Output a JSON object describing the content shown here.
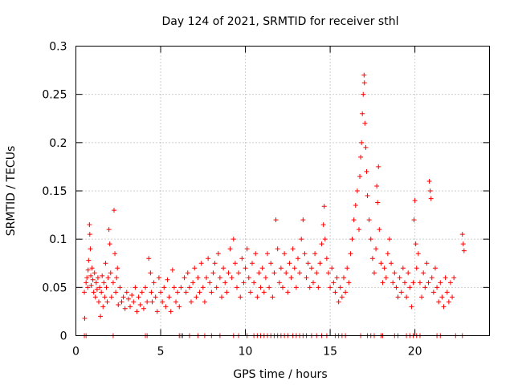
{
  "chart_data": {
    "type": "scatter",
    "title": "Day 124 of 2021, SRMTID for receiver sthl",
    "xlabel": "GPS time / hours",
    "ylabel": "SRMTID / TECUs",
    "xlim": [
      0,
      24.4
    ],
    "ylim": [
      0,
      0.3
    ],
    "xticks": [
      0,
      5,
      10,
      15,
      20
    ],
    "xtick_labels": [
      "0",
      "5",
      "10",
      "15",
      "20"
    ],
    "yticks": [
      0,
      0.05,
      0.1,
      0.15,
      0.2,
      0.25,
      0.3
    ],
    "ytick_labels": [
      "0",
      "0.05",
      "0.1",
      "0.15",
      "0.2",
      "0.25",
      "0.3"
    ],
    "grid": true,
    "marker": "plus",
    "series": [
      {
        "name": "SRMTID",
        "color": "#ff0000",
        "points": [
          [
            0.5,
            0.045
          ],
          [
            0.52,
            0.018
          ],
          [
            0.6,
            0.055
          ],
          [
            0.65,
            0.06
          ],
          [
            0.7,
            0.05
          ],
          [
            0.72,
            0.068
          ],
          [
            0.75,
            0.078
          ],
          [
            0.8,
            0.115
          ],
          [
            0.82,
            0.105
          ],
          [
            0.85,
            0.09
          ],
          [
            0.88,
            0.062
          ],
          [
            0.9,
            0.052
          ],
          [
            0.95,
            0.07
          ],
          [
            1.0,
            0.058
          ],
          [
            1.05,
            0.045
          ],
          [
            1.1,
            0.065
          ],
          [
            1.15,
            0.04
          ],
          [
            1.2,
            0.055
          ],
          [
            1.25,
            0.048
          ],
          [
            1.3,
            0.06
          ],
          [
            1.35,
            0.035
          ],
          [
            1.4,
            0.05
          ],
          [
            1.45,
            0.02
          ],
          [
            1.5,
            0.045
          ],
          [
            1.55,
            0.062
          ],
          [
            1.6,
            0.03
          ],
          [
            1.65,
            0.055
          ],
          [
            1.7,
            0.04
          ],
          [
            1.75,
            0.075
          ],
          [
            1.8,
            0.05
          ],
          [
            1.85,
            0.035
          ],
          [
            1.9,
            0.06
          ],
          [
            1.95,
            0.11
          ],
          [
            2.0,
            0.095
          ],
          [
            2.05,
            0.065
          ],
          [
            2.1,
            0.04
          ],
          [
            2.2,
            0.055
          ],
          [
            2.25,
            0.13
          ],
          [
            2.3,
            0.085
          ],
          [
            2.35,
            0.045
          ],
          [
            2.4,
            0.06
          ],
          [
            2.45,
            0.07
          ],
          [
            2.5,
            0.032
          ],
          [
            2.6,
            0.05
          ],
          [
            2.7,
            0.035
          ],
          [
            2.8,
            0.04
          ],
          [
            2.9,
            0.028
          ],
          [
            3.0,
            0.045
          ],
          [
            3.1,
            0.038
          ],
          [
            3.2,
            0.03
          ],
          [
            3.3,
            0.042
          ],
          [
            3.4,
            0.035
          ],
          [
            3.5,
            0.05
          ],
          [
            3.6,
            0.025
          ],
          [
            3.7,
            0.04
          ],
          [
            3.8,
            0.032
          ],
          [
            3.9,
            0.045
          ],
          [
            4.0,
            0.028
          ],
          [
            4.1,
            0.05
          ],
          [
            4.2,
            0.035
          ],
          [
            4.3,
            0.08
          ],
          [
            4.4,
            0.065
          ],
          [
            4.45,
            0.045
          ],
          [
            4.5,
            0.035
          ],
          [
            4.6,
            0.055
          ],
          [
            4.7,
            0.04
          ],
          [
            4.8,
            0.025
          ],
          [
            4.9,
            0.06
          ],
          [
            5.0,
            0.045
          ],
          [
            5.1,
            0.035
          ],
          [
            5.2,
            0.05
          ],
          [
            5.3,
            0.03
          ],
          [
            5.4,
            0.058
          ],
          [
            5.5,
            0.04
          ],
          [
            5.6,
            0.025
          ],
          [
            5.7,
            0.068
          ],
          [
            5.8,
            0.05
          ],
          [
            5.9,
            0.035
          ],
          [
            6.0,
            0.045
          ],
          [
            6.1,
            0.03
          ],
          [
            6.2,
            0.05
          ],
          [
            6.4,
            0.06
          ],
          [
            6.5,
            0.045
          ],
          [
            6.6,
            0.065
          ],
          [
            6.7,
            0.05
          ],
          [
            6.8,
            0.035
          ],
          [
            6.9,
            0.055
          ],
          [
            7.0,
            0.07
          ],
          [
            7.1,
            0.04
          ],
          [
            7.2,
            0.06
          ],
          [
            7.3,
            0.045
          ],
          [
            7.4,
            0.075
          ],
          [
            7.5,
            0.05
          ],
          [
            7.6,
            0.035
          ],
          [
            7.7,
            0.06
          ],
          [
            7.8,
            0.08
          ],
          [
            7.9,
            0.055
          ],
          [
            8.0,
            0.045
          ],
          [
            8.1,
            0.065
          ],
          [
            8.2,
            0.075
          ],
          [
            8.3,
            0.05
          ],
          [
            8.4,
            0.085
          ],
          [
            8.5,
            0.06
          ],
          [
            8.6,
            0.04
          ],
          [
            8.7,
            0.07
          ],
          [
            8.8,
            0.055
          ],
          [
            8.9,
            0.045
          ],
          [
            9.0,
            0.065
          ],
          [
            9.1,
            0.09
          ],
          [
            9.2,
            0.06
          ],
          [
            9.3,
            0.1
          ],
          [
            9.4,
            0.075
          ],
          [
            9.5,
            0.05
          ],
          [
            9.6,
            0.065
          ],
          [
            9.7,
            0.04
          ],
          [
            9.8,
            0.08
          ],
          [
            9.9,
            0.055
          ],
          [
            10.0,
            0.07
          ],
          [
            10.1,
            0.09
          ],
          [
            10.2,
            0.06
          ],
          [
            10.3,
            0.045
          ],
          [
            10.4,
            0.075
          ],
          [
            10.5,
            0.055
          ],
          [
            10.6,
            0.085
          ],
          [
            10.7,
            0.04
          ],
          [
            10.8,
            0.065
          ],
          [
            10.9,
            0.05
          ],
          [
            11.0,
            0.07
          ],
          [
            11.1,
            0.045
          ],
          [
            11.2,
            0.06
          ],
          [
            11.3,
            0.085
          ],
          [
            11.4,
            0.05
          ],
          [
            11.5,
            0.075
          ],
          [
            11.6,
            0.04
          ],
          [
            11.7,
            0.065
          ],
          [
            11.8,
            0.12
          ],
          [
            11.9,
            0.09
          ],
          [
            12.0,
            0.055
          ],
          [
            12.1,
            0.07
          ],
          [
            12.2,
            0.05
          ],
          [
            12.3,
            0.085
          ],
          [
            12.4,
            0.065
          ],
          [
            12.5,
            0.045
          ],
          [
            12.6,
            0.075
          ],
          [
            12.7,
            0.06
          ],
          [
            12.8,
            0.09
          ],
          [
            12.9,
            0.07
          ],
          [
            13.0,
            0.05
          ],
          [
            13.1,
            0.08
          ],
          [
            13.2,
            0.065
          ],
          [
            13.3,
            0.1
          ],
          [
            13.4,
            0.12
          ],
          [
            13.5,
            0.085
          ],
          [
            13.6,
            0.06
          ],
          [
            13.7,
            0.075
          ],
          [
            13.8,
            0.05
          ],
          [
            13.9,
            0.07
          ],
          [
            14.0,
            0.055
          ],
          [
            14.1,
            0.085
          ],
          [
            14.2,
            0.065
          ],
          [
            14.3,
            0.05
          ],
          [
            14.4,
            0.075
          ],
          [
            14.5,
            0.095
          ],
          [
            14.6,
            0.115
          ],
          [
            14.65,
            0.134
          ],
          [
            14.7,
            0.1
          ],
          [
            14.8,
            0.08
          ],
          [
            14.9,
            0.065
          ],
          [
            15.0,
            0.05
          ],
          [
            15.1,
            0.07
          ],
          [
            15.2,
            0.055
          ],
          [
            15.3,
            0.045
          ],
          [
            15.4,
            0.06
          ],
          [
            15.5,
            0.035
          ],
          [
            15.6,
            0.05
          ],
          [
            15.7,
            0.04
          ],
          [
            15.8,
            0.06
          ],
          [
            15.9,
            0.045
          ],
          [
            16.0,
            0.07
          ],
          [
            16.1,
            0.055
          ],
          [
            16.2,
            0.085
          ],
          [
            16.3,
            0.1
          ],
          [
            16.4,
            0.12
          ],
          [
            16.5,
            0.135
          ],
          [
            16.6,
            0.15
          ],
          [
            16.7,
            0.11
          ],
          [
            16.75,
            0.165
          ],
          [
            16.8,
            0.185
          ],
          [
            16.85,
            0.2
          ],
          [
            16.9,
            0.23
          ],
          [
            16.95,
            0.25
          ],
          [
            17.0,
            0.27
          ],
          [
            17.02,
            0.262
          ],
          [
            17.05,
            0.22
          ],
          [
            17.1,
            0.195
          ],
          [
            17.15,
            0.17
          ],
          [
            17.2,
            0.145
          ],
          [
            17.3,
            0.12
          ],
          [
            17.4,
            0.1
          ],
          [
            17.5,
            0.08
          ],
          [
            17.6,
            0.065
          ],
          [
            17.7,
            0.09
          ],
          [
            17.75,
            0.155
          ],
          [
            17.8,
            0.138
          ],
          [
            17.85,
            0.175
          ],
          [
            17.9,
            0.11
          ],
          [
            18.0,
            0.075
          ],
          [
            18.1,
            0.055
          ],
          [
            18.2,
            0.07
          ],
          [
            18.3,
            0.06
          ],
          [
            18.4,
            0.085
          ],
          [
            18.5,
            0.1
          ],
          [
            18.6,
            0.075
          ],
          [
            18.7,
            0.055
          ],
          [
            18.8,
            0.065
          ],
          [
            18.9,
            0.05
          ],
          [
            19.0,
            0.04
          ],
          [
            19.1,
            0.06
          ],
          [
            19.2,
            0.045
          ],
          [
            19.3,
            0.07
          ],
          [
            19.4,
            0.055
          ],
          [
            19.5,
            0.04
          ],
          [
            19.6,
            0.065
          ],
          [
            19.7,
            0.05
          ],
          [
            19.8,
            0.03
          ],
          [
            19.9,
            0.055
          ],
          [
            19.95,
            0.12
          ],
          [
            20.0,
            0.14
          ],
          [
            20.05,
            0.095
          ],
          [
            20.1,
            0.07
          ],
          [
            20.2,
            0.085
          ],
          [
            20.3,
            0.055
          ],
          [
            20.4,
            0.04
          ],
          [
            20.5,
            0.065
          ],
          [
            20.6,
            0.05
          ],
          [
            20.7,
            0.075
          ],
          [
            20.8,
            0.055
          ],
          [
            20.85,
            0.16
          ],
          [
            20.9,
            0.15
          ],
          [
            20.95,
            0.142
          ],
          [
            21.0,
            0.06
          ],
          [
            21.1,
            0.045
          ],
          [
            21.2,
            0.07
          ],
          [
            21.3,
            0.05
          ],
          [
            21.4,
            0.035
          ],
          [
            21.5,
            0.055
          ],
          [
            21.6,
            0.04
          ],
          [
            21.7,
            0.03
          ],
          [
            21.8,
            0.06
          ],
          [
            21.9,
            0.045
          ],
          [
            22.0,
            0.035
          ],
          [
            22.1,
            0.055
          ],
          [
            22.2,
            0.04
          ],
          [
            22.3,
            0.06
          ],
          [
            22.8,
            0.105
          ],
          [
            22.85,
            0.095
          ],
          [
            22.9,
            0.088
          ],
          [
            0.5,
            0.0
          ],
          [
            0.6,
            0.0
          ],
          [
            2.2,
            0.0
          ],
          [
            4.1,
            0.0
          ],
          [
            4.2,
            0.0
          ],
          [
            6.1,
            0.0
          ],
          [
            6.2,
            0.0
          ],
          [
            6.3,
            0.0
          ],
          [
            6.7,
            0.0
          ],
          [
            7.2,
            0.0
          ],
          [
            7.6,
            0.0
          ],
          [
            8.0,
            0.0
          ],
          [
            8.5,
            0.0
          ],
          [
            9.3,
            0.0
          ],
          [
            9.6,
            0.0
          ],
          [
            10.1,
            0.0
          ],
          [
            10.5,
            0.0
          ],
          [
            10.7,
            0.0
          ],
          [
            10.9,
            0.0
          ],
          [
            11.1,
            0.0
          ],
          [
            11.3,
            0.0
          ],
          [
            11.5,
            0.0
          ],
          [
            11.7,
            0.0
          ],
          [
            11.9,
            0.0
          ],
          [
            12.1,
            0.0
          ],
          [
            12.3,
            0.0
          ],
          [
            12.5,
            0.0
          ],
          [
            12.8,
            0.0
          ],
          [
            13.0,
            0.0
          ],
          [
            13.2,
            0.0
          ],
          [
            13.4,
            0.0
          ],
          [
            13.6,
            0.0
          ],
          [
            13.9,
            0.0
          ],
          [
            14.2,
            0.0
          ],
          [
            14.5,
            0.0
          ],
          [
            14.8,
            0.0
          ],
          [
            15.3,
            0.0
          ],
          [
            15.5,
            0.0
          ],
          [
            15.7,
            0.0
          ],
          [
            15.9,
            0.0
          ],
          [
            16.8,
            0.0
          ],
          [
            17.2,
            0.0
          ],
          [
            17.4,
            0.0
          ],
          [
            17.6,
            0.0
          ],
          [
            18.0,
            0.0
          ],
          [
            18.1,
            0.0
          ],
          [
            18.8,
            0.0
          ],
          [
            19.0,
            0.0
          ],
          [
            19.5,
            0.0
          ],
          [
            19.7,
            0.0
          ],
          [
            19.9,
            0.0
          ],
          [
            20.1,
            0.0
          ],
          [
            20.3,
            0.0
          ],
          [
            21.3,
            0.0
          ],
          [
            21.5,
            0.0
          ],
          [
            22.4,
            0.0
          ],
          [
            22.8,
            0.0
          ]
        ]
      }
    ]
  }
}
